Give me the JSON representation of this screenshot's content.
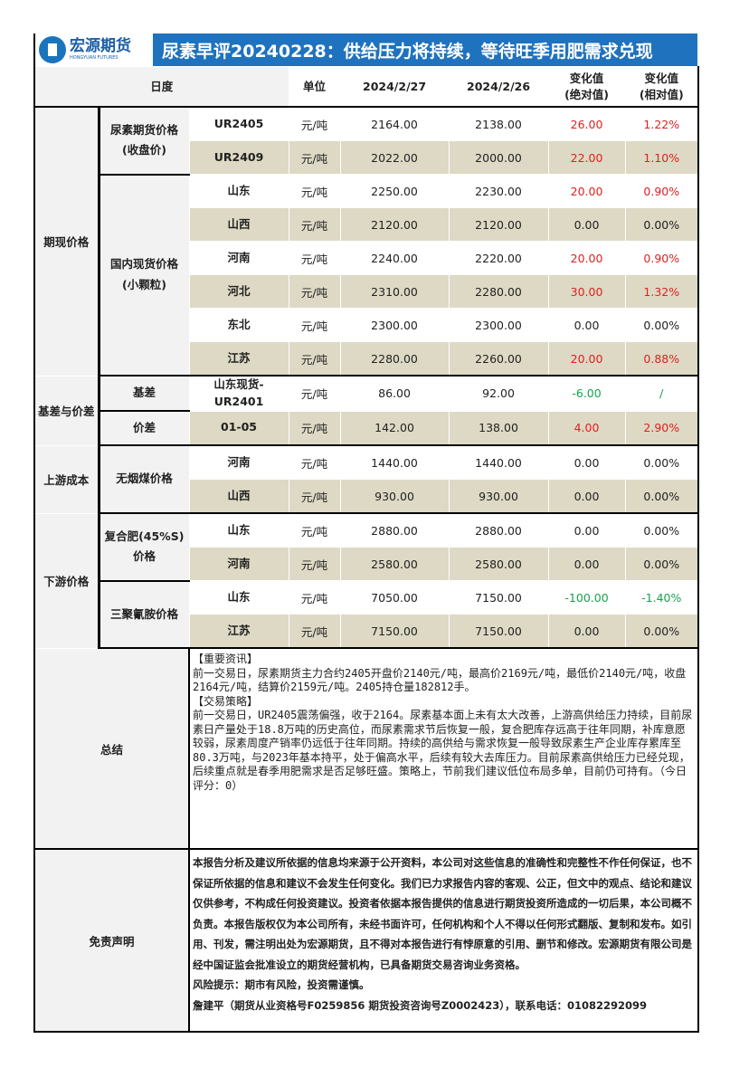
{
  "header": {
    "logo_cn": "宏源期货",
    "logo_en": "HONGYUAN FUTURES",
    "title": "尿素早评20240228：供给压力将持续，等待旺季用肥需求兑现"
  },
  "columns": {
    "period": "日度",
    "unit": "单位",
    "date1": "2024/2/27",
    "date2": "2024/2/26",
    "abs": "变化值\n(绝对值)",
    "rel": "变化值\n(相对值)"
  },
  "colors": {
    "title_bar": "#1f72bd",
    "alt_row": "#ddd9c4",
    "up": "#e02020",
    "down": "#16a34a"
  },
  "groups": [
    {
      "label": "期现价格",
      "subs": [
        {
          "label": "尿素期货价格\n(收盘价)",
          "rows": [
            {
              "item": "UR2405",
              "unit": "元/吨",
              "v1": "2164.00",
              "v2": "2138.00",
              "abs": "26.00",
              "rel": "1.22%",
              "dir": "up"
            },
            {
              "item": "UR2409",
              "unit": "元/吨",
              "v1": "2022.00",
              "v2": "2000.00",
              "abs": "22.00",
              "rel": "1.10%",
              "dir": "up"
            }
          ]
        },
        {
          "label": "国内现货价格\n(小颗粒)",
          "rows": [
            {
              "item": "山东",
              "unit": "元/吨",
              "v1": "2250.00",
              "v2": "2230.00",
              "abs": "20.00",
              "rel": "0.90%",
              "dir": "up"
            },
            {
              "item": "山西",
              "unit": "元/吨",
              "v1": "2120.00",
              "v2": "2120.00",
              "abs": "0.00",
              "rel": "0.00%",
              "dir": "flat"
            },
            {
              "item": "河南",
              "unit": "元/吨",
              "v1": "2240.00",
              "v2": "2220.00",
              "abs": "20.00",
              "rel": "0.90%",
              "dir": "up"
            },
            {
              "item": "河北",
              "unit": "元/吨",
              "v1": "2310.00",
              "v2": "2280.00",
              "abs": "30.00",
              "rel": "1.32%",
              "dir": "up"
            },
            {
              "item": "东北",
              "unit": "元/吨",
              "v1": "2300.00",
              "v2": "2300.00",
              "abs": "0.00",
              "rel": "0.00%",
              "dir": "flat"
            },
            {
              "item": "江苏",
              "unit": "元/吨",
              "v1": "2280.00",
              "v2": "2260.00",
              "abs": "20.00",
              "rel": "0.88%",
              "dir": "up"
            }
          ]
        }
      ]
    },
    {
      "label": "基差与价差",
      "subs": [
        {
          "label": "基差",
          "rows": [
            {
              "item": "山东现货-\nUR2401",
              "unit": "元/吨",
              "v1": "86.00",
              "v2": "92.00",
              "abs": "-6.00",
              "rel": "/",
              "dir": "down"
            }
          ]
        },
        {
          "label": "价差",
          "rows": [
            {
              "item": "01-05",
              "unit": "元/吨",
              "v1": "142.00",
              "v2": "138.00",
              "abs": "4.00",
              "rel": "2.90%",
              "dir": "up"
            }
          ]
        }
      ]
    },
    {
      "label": "上游成本",
      "subs": [
        {
          "label": "无烟煤价格",
          "rows": [
            {
              "item": "河南",
              "unit": "元/吨",
              "v1": "1440.00",
              "v2": "1440.00",
              "abs": "0.00",
              "rel": "0.00%",
              "dir": "flat"
            },
            {
              "item": "山西",
              "unit": "元/吨",
              "v1": "930.00",
              "v2": "930.00",
              "abs": "0.00",
              "rel": "0.00%",
              "dir": "flat"
            }
          ]
        }
      ]
    },
    {
      "label": "下游价格",
      "subs": [
        {
          "label": "复合肥(45%S)\n价格",
          "rows": [
            {
              "item": "山东",
              "unit": "元/吨",
              "v1": "2880.00",
              "v2": "2880.00",
              "abs": "0.00",
              "rel": "0.00%",
              "dir": "flat"
            },
            {
              "item": "河南",
              "unit": "元/吨",
              "v1": "2580.00",
              "v2": "2580.00",
              "abs": "0.00",
              "rel": "0.00%",
              "dir": "flat"
            }
          ]
        },
        {
          "label": "三聚氰胺价格",
          "rows": [
            {
              "item": "山东",
              "unit": "元/吨",
              "v1": "7050.00",
              "v2": "7150.00",
              "abs": "-100.00",
              "rel": "-1.40%",
              "dir": "down"
            },
            {
              "item": "江苏",
              "unit": "元/吨",
              "v1": "7150.00",
              "v2": "7150.00",
              "abs": "0.00",
              "rel": "0.00%",
              "dir": "flat"
            }
          ]
        }
      ]
    }
  ],
  "summary": {
    "label": "总结",
    "lines": [
      "【重要资讯】",
      "前一交易日，尿素期货主力合约2405开盘价2140元/吨，最高价2169元/吨，最低价2140元/吨，收盘2164元/吨，结算价2159元/吨。2405持仓量182812手。",
      "【交易策略】",
      "前一交易日，UR2405震荡偏强，收于2164。尿素基本面上未有太大改善，上游高供给压力持续，目前尿素日产量处于18.8万吨的历史高位，而尿素需求节后恢复一般，复合肥库存远高于往年同期，补库意愿较弱，尿素周度产销率仍远低于往年同期。持续的高供给与需求恢复一般导致尿素生产企业库存累库至80.3万吨，与2023年基本持平，处于偏高水平，后续有较大去库压力。目前尿素高供给压力已经兑现，后续重点就是春季用肥需求是否足够旺盛。策略上，节前我们建议低位布局多单，目前仍可持有。（今日评分：0）"
    ]
  },
  "disclaimer": {
    "label": "免责声明",
    "lines": [
      "本报告分析及建议所依据的信息均来源于公开资料，本公司对这些信息的准确性和完整性不作任何保证，也不保证所依据的信息和建议不会发生任何变化。我们已力求报告内容的客观、公正，但文中的观点、结论和建议仅供参考，不构成任何投资建议。投资者依据本报告提供的信息进行期货投资所造成的一切后果，本公司概不负责。本报告版权仅为本公司所有，未经书面许可，任何机构和个人不得以任何形式翻版、复制和发布。如引用、刊发，需注明出处为宏源期货，且不得对本报告进行有悖原意的引用、删节和修改。宏源期货有限公司是经中国证监会批准设立的期货经营机构，已具备期货交易咨询业务资格。",
      "风险提示：期市有风险，投资需谨慎。",
      "詹建平（期货从业资格号F0259856 期货投资咨询号Z0002423），联系电话：01082292099"
    ]
  }
}
